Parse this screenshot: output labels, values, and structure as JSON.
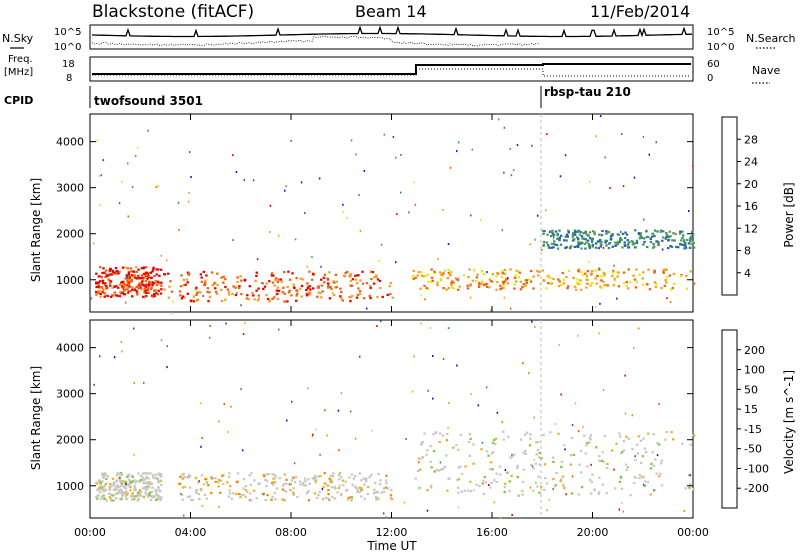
{
  "header": {
    "radar": "Blackstone (fitACF)",
    "beam": "Beam 14",
    "date": "11/Feb/2014"
  },
  "top_panels": {
    "nsky_label": "N.Sky",
    "nsearch_label": "N.Search",
    "nsky_ticks": [
      "10^5",
      "10^0"
    ],
    "nsearch_ticks": [
      "10^5",
      "10^0"
    ],
    "freq_label_1": "Freq.",
    "freq_label_2": "[MHz]",
    "freq_ticks": [
      "18",
      "8"
    ],
    "nave_label": "Nave",
    "nave_ticks": [
      "60",
      "0"
    ],
    "cpid_label": "CPID",
    "cpid_segments": [
      {
        "name": "twofsound 3501",
        "start_hour": 0
      },
      {
        "name": "rbsp-tau 210",
        "start_hour": 18
      }
    ]
  },
  "colors": {
    "power": [
      "#1010e0",
      "#2a5fb0",
      "#3a8a6a",
      "#4fa34f",
      "#e8e800",
      "#f4a020",
      "#f06010",
      "#e80000"
    ],
    "velocity": [
      "#e00000",
      "#f05000",
      "#f08c00",
      "#f4b020",
      "#c8c8c0",
      "#80c840",
      "#3a8a6a",
      "#2050b0",
      "#1010c0"
    ]
  },
  "chart_data": [
    {
      "type": "heatmap",
      "title": "Power",
      "xlabel": "Time UT",
      "ylabel": "Slant Range [km]",
      "x_ticks": [
        "00:00",
        "04:00",
        "08:00",
        "12:00",
        "16:00",
        "20:00",
        "00:00"
      ],
      "y_ticks": [
        "1000",
        "2000",
        "3000",
        "4000"
      ],
      "ylim": [
        300,
        4600
      ],
      "colorbar_label": "Power [dB]",
      "colorbar_ticks": [
        "4",
        "8",
        "12",
        "16",
        "20",
        "24",
        "28"
      ],
      "colorbar_range": [
        0,
        32
      ],
      "regions": [
        {
          "t0": 0.2,
          "t1": 2.8,
          "r0": 650,
          "r1": 1300,
          "level": 28
        },
        {
          "t0": 2.8,
          "t1": 12.0,
          "r0": 550,
          "r1": 1200,
          "level": 26
        },
        {
          "t0": 12.8,
          "t1": 24.0,
          "r0": 800,
          "r1": 1250,
          "level": 22
        },
        {
          "t0": 17.9,
          "t1": 24.0,
          "r0": 1700,
          "r1": 2100,
          "level": 10
        }
      ]
    },
    {
      "type": "heatmap",
      "title": "Velocity",
      "xlabel": "Time UT",
      "ylabel": "Slant Range [km]",
      "x_ticks": [
        "00:00",
        "04:00",
        "08:00",
        "12:00",
        "16:00",
        "20:00",
        "00:00"
      ],
      "y_ticks": [
        "1000",
        "2000",
        "3000",
        "4000"
      ],
      "ylim": [
        300,
        4600
      ],
      "colorbar_label": "Velocity [m s^-1]",
      "colorbar_ticks": [
        "200",
        "100",
        "50",
        "15",
        "-15",
        "-50",
        "-100",
        "-200"
      ],
      "colorbar_range": [
        -250,
        250
      ],
      "regions": [
        {
          "t0": 0.2,
          "t1": 2.8,
          "r0": 700,
          "r1": 1300,
          "level": 0
        },
        {
          "t0": 3.5,
          "t1": 12.0,
          "r0": 700,
          "r1": 1300,
          "level": -60
        },
        {
          "t0": 12.8,
          "t1": 24.0,
          "r0": 800,
          "r1": 2200,
          "level": 0
        }
      ]
    }
  ]
}
